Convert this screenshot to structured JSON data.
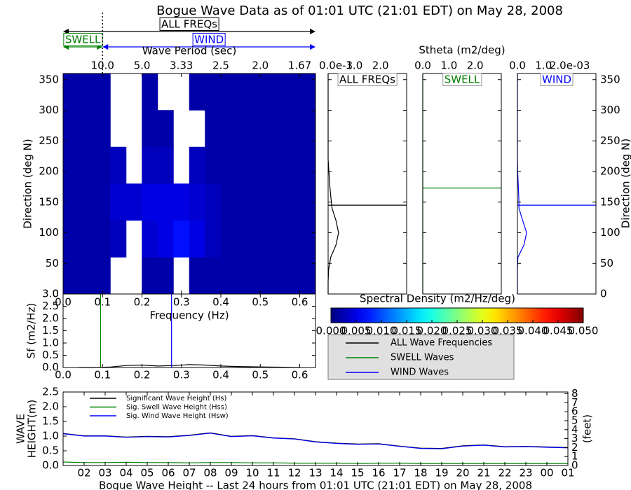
{
  "header": {
    "title": "Bogue Wave Data as of 01:01 UTC (21:01 EDT) on May 28, 2008",
    "bands": [
      {
        "label": "ALL FREQs",
        "color": "#000000",
        "range": [
          0,
          0.64
        ]
      },
      {
        "label": "SWELL",
        "color": "#008000",
        "range": [
          0,
          0.1
        ]
      },
      {
        "label": "WIND",
        "color": "#0000ff",
        "range": [
          0.1,
          0.64
        ]
      }
    ]
  },
  "chart_data": [
    {
      "type": "heatmap",
      "x_label": "Frequency (Hz)",
      "y_label": "Direction (deg N)",
      "top_axis_label": "Wave Period (sec)",
      "top_ticks": [
        {
          "value": 0.1,
          "label": "10.0"
        },
        {
          "value": 0.2,
          "label": "5.0"
        },
        {
          "value": 0.3,
          "label": "3.33"
        },
        {
          "value": 0.4,
          "label": "2.5"
        },
        {
          "value": 0.5,
          "label": "2.0"
        },
        {
          "value": 0.6,
          "label": "1.67"
        }
      ],
      "xlim": [
        0,
        0.64
      ],
      "ylim": [
        0,
        360
      ],
      "xticks": [
        {
          "value": 0,
          "label": "0.0"
        },
        {
          "value": 0.1,
          "label": "0.1"
        },
        {
          "value": 0.2,
          "label": "0.2"
        },
        {
          "value": 0.3,
          "label": "0.3"
        },
        {
          "value": 0.4,
          "label": "0.4"
        },
        {
          "value": 0.5,
          "label": "0.5"
        },
        {
          "value": 0.6,
          "label": "0.6"
        }
      ],
      "yticks": [
        0,
        50,
        100,
        150,
        200,
        250,
        300,
        350
      ],
      "x_bins": [
        0,
        0.04,
        0.08,
        0.12,
        0.16,
        0.2,
        0.24,
        0.28,
        0.32,
        0.36,
        0.4,
        0.44,
        0.48,
        0.52,
        0.56,
        0.6,
        0.64
      ],
      "y_bins": [
        0,
        60,
        120,
        180,
        240,
        300,
        360
      ],
      "z": [
        [
          0.002,
          0.002,
          0.002,
          null,
          null,
          0.002,
          0.002,
          null,
          0.002,
          0.002,
          0.002,
          0.002,
          0.002,
          0.002,
          0.002,
          0.002
        ],
        [
          0.002,
          0.002,
          0.002,
          0.003,
          null,
          0.004,
          0.005,
          0.007,
          0.005,
          0.003,
          0.002,
          0.002,
          0.002,
          0.002,
          0.002,
          0.002
        ],
        [
          0.002,
          0.002,
          0.002,
          0.004,
          0.004,
          0.005,
          0.005,
          0.005,
          0.004,
          0.003,
          0.002,
          0.002,
          0.002,
          0.002,
          0.002,
          0.002
        ],
        [
          0.002,
          0.002,
          0.002,
          0.003,
          null,
          0.003,
          0.003,
          null,
          0.003,
          0.002,
          0.002,
          0.002,
          0.002,
          0.002,
          0.002,
          0.002
        ],
        [
          0.002,
          0.002,
          0.002,
          null,
          null,
          0.002,
          0.002,
          null,
          null,
          0.002,
          0.002,
          0.002,
          0.002,
          0.002,
          0.002,
          0.002
        ],
        [
          0.002,
          0.002,
          0.002,
          null,
          null,
          0.002,
          null,
          null,
          0.002,
          0.002,
          0.002,
          0.002,
          0.002,
          0.002,
          0.002,
          0.002
        ]
      ],
      "colormap": "jet",
      "colorbar_label": "Spectral Density (m2/Hz/deg)",
      "zlim": [
        0,
        0.05
      ],
      "zticks": [
        {
          "value": 0,
          "label": "0.000"
        },
        {
          "value": 0.005,
          "label": "0.005"
        },
        {
          "value": 0.01,
          "label": "0.010"
        },
        {
          "value": 0.015,
          "label": "0.015"
        },
        {
          "value": 0.02,
          "label": "0.020"
        },
        {
          "value": 0.025,
          "label": "0.025"
        },
        {
          "value": 0.03,
          "label": "0.030"
        },
        {
          "value": 0.035,
          "label": "0.035"
        },
        {
          "value": 0.04,
          "label": "0.040"
        },
        {
          "value": 0.045,
          "label": "0.045"
        },
        {
          "value": 0.05,
          "label": "0.050"
        }
      ]
    },
    {
      "type": "direction-profile",
      "title": "Stheta (m2/deg)",
      "y2_label": "Direction (deg N)",
      "xlim": [
        0,
        3
      ],
      "ylim": [
        0,
        360
      ],
      "yticks": [
        0,
        50,
        100,
        150,
        200,
        250,
        300,
        350
      ],
      "directions": [
        0,
        20,
        40,
        60,
        80,
        100,
        120,
        140,
        160,
        180,
        200,
        220,
        240,
        260,
        280,
        300,
        320,
        340,
        360
      ],
      "panels": [
        {
          "name": "ALL FREQs",
          "color": "#000000",
          "mean_direction": 145,
          "values": [
            0,
            0,
            0.02,
            0.1,
            0.3,
            0.4,
            0.3,
            0.15,
            0.1,
            0.06,
            0.03,
            0,
            0,
            0,
            0,
            0,
            0,
            0,
            0
          ],
          "xticks": [
            {
              "value": 0,
              "label": "0.0e-3"
            },
            {
              "value": 1,
              "label": "1.0"
            },
            {
              "value": 2,
              "label": "2.0"
            }
          ]
        },
        {
          "name": "SWELL",
          "color": "#008000",
          "mean_direction": 173,
          "values": [
            0,
            0,
            0,
            0,
            0,
            0,
            0,
            0,
            0,
            0,
            0,
            0,
            0,
            0,
            0,
            0,
            0,
            0,
            0
          ],
          "xticks": [
            {
              "value": 0,
              "label": "0.0"
            },
            {
              "value": 1,
              "label": "1.0"
            },
            {
              "value": 2,
              "label": "2.0"
            }
          ]
        },
        {
          "name": "WIND",
          "color": "#0000ff",
          "mean_direction": 145,
          "values": [
            0,
            0,
            0,
            0.02,
            0.25,
            0.35,
            0.2,
            0.06,
            0.05,
            0.03,
            0.01,
            0,
            0,
            0,
            0,
            0,
            0,
            0,
            0
          ],
          "xticks": [
            {
              "value": 0,
              "label": "0.0"
            },
            {
              "value": 1,
              "label": "1.0"
            },
            {
              "value": 2,
              "label": "2.0e-03"
            }
          ]
        }
      ]
    },
    {
      "type": "line",
      "y_label": "Sf (m2/Hz)",
      "xlim": [
        0,
        0.64
      ],
      "ylim": [
        0,
        3
      ],
      "xticks": [
        {
          "value": 0,
          "label": "0.0"
        },
        {
          "value": 0.1,
          "label": "0.1"
        },
        {
          "value": 0.2,
          "label": "0.2"
        },
        {
          "value": 0.3,
          "label": "0.3"
        },
        {
          "value": 0.4,
          "label": "0.4"
        },
        {
          "value": 0.5,
          "label": "0.5"
        },
        {
          "value": 0.6,
          "label": "0.6"
        }
      ],
      "yticks": [
        {
          "value": 0,
          "label": "0.0"
        },
        {
          "value": 0.5,
          "label": "0.5"
        },
        {
          "value": 1,
          "label": "1.0"
        },
        {
          "value": 1.5,
          "label": "1.5"
        },
        {
          "value": 2,
          "label": "2.0"
        },
        {
          "value": 2.5,
          "label": "2.5"
        },
        {
          "value": 3,
          "label": "3.0"
        }
      ],
      "x": [
        0.04,
        0.08,
        0.12,
        0.16,
        0.2,
        0.24,
        0.28,
        0.32,
        0.36,
        0.4,
        0.44,
        0.48,
        0.52,
        0.56,
        0.6
      ],
      "series": [
        {
          "name": "ALL Wave Frequencies",
          "color": "#000000",
          "values": [
            0,
            0,
            0.02,
            0.08,
            0.1,
            0.06,
            0.08,
            0.12,
            0.1,
            0.06,
            0.04,
            0.03,
            0.02,
            0.01,
            0
          ]
        },
        {
          "name": "SWELL Waves",
          "color": "#008000",
          "peak_frequency": 0.095
        },
        {
          "name": "WIND Waves",
          "color": "#0000ff",
          "peak_frequency": 0.275
        }
      ],
      "legend": "outside"
    },
    {
      "type": "line",
      "y_label": [
        "WAVE",
        "HEIGHT(m)"
      ],
      "y2_label": "(feet)",
      "x_label": "Bogue Wave Height -- Last 24 hours from 01:01 UTC (21:01 EDT) on May 28, 2008",
      "xlim": [
        0,
        24
      ],
      "ylim": [
        0,
        2.5
      ],
      "y2lim": [
        0,
        8.2
      ],
      "xticks": [
        {
          "value": 1,
          "label": "02"
        },
        {
          "value": 2,
          "label": "03"
        },
        {
          "value": 3,
          "label": "04"
        },
        {
          "value": 4,
          "label": "05"
        },
        {
          "value": 5,
          "label": "06"
        },
        {
          "value": 6,
          "label": "07"
        },
        {
          "value": 7,
          "label": "08"
        },
        {
          "value": 8,
          "label": "09"
        },
        {
          "value": 9,
          "label": "10"
        },
        {
          "value": 10,
          "label": "11"
        },
        {
          "value": 11,
          "label": "12"
        },
        {
          "value": 12,
          "label": "13"
        },
        {
          "value": 13,
          "label": "14"
        },
        {
          "value": 14,
          "label": "15"
        },
        {
          "value": 15,
          "label": "16"
        },
        {
          "value": 16,
          "label": "17"
        },
        {
          "value": 17,
          "label": "18"
        },
        {
          "value": 18,
          "label": "19"
        },
        {
          "value": 19,
          "label": "20"
        },
        {
          "value": 20,
          "label": "21"
        },
        {
          "value": 21,
          "label": "22"
        },
        {
          "value": 22,
          "label": "23"
        },
        {
          "value": 23,
          "label": "00"
        },
        {
          "value": 24,
          "label": "01"
        }
      ],
      "yticks": [
        {
          "value": 0,
          "label": "0.0"
        },
        {
          "value": 0.5,
          "label": "0.5"
        },
        {
          "value": 1,
          "label": "1.0"
        },
        {
          "value": 1.5,
          "label": "1.5"
        },
        {
          "value": 2,
          "label": "2.0"
        },
        {
          "value": 2.5,
          "label": "2.5"
        }
      ],
      "y2ticks": [
        0,
        1,
        2,
        3,
        4,
        5,
        6,
        7,
        8
      ],
      "x": [
        0,
        1,
        2,
        3,
        4,
        5,
        6,
        7,
        8,
        9,
        10,
        11,
        12,
        13,
        14,
        15,
        16,
        17,
        18,
        19,
        20,
        21,
        22,
        23,
        24
      ],
      "series": [
        {
          "name": "Significant Wave Height (Hs)",
          "color": "#000000",
          "values": [
            1.09,
            1.01,
            1.01,
            0.97,
            0.99,
            0.98,
            1.03,
            1.11,
            0.99,
            1.02,
            0.94,
            0.91,
            0.81,
            0.76,
            0.73,
            0.74,
            0.66,
            0.59,
            0.58,
            0.67,
            0.7,
            0.64,
            0.65,
            0.63,
            0.61
          ]
        },
        {
          "name": "Sig. Swell Wave Height (Hss)",
          "color": "#008000",
          "values": [
            0.12,
            0.1,
            0.1,
            0.11,
            0.1,
            0.1,
            0.09,
            0.1,
            0.1,
            0.09,
            0.09,
            0.08,
            0.08,
            0.08,
            0.07,
            0.08,
            0.08,
            0.07,
            0.07,
            0.07,
            0.07,
            0.07,
            0.07,
            0.07,
            0.07
          ]
        },
        {
          "name": "Sig. Wind Wave Height (Hsw)",
          "color": "#0000ff",
          "values": [
            1.08,
            1.0,
            1.0,
            0.96,
            0.98,
            0.97,
            1.02,
            1.1,
            0.98,
            1.01,
            0.93,
            0.9,
            0.8,
            0.75,
            0.72,
            0.73,
            0.65,
            0.58,
            0.57,
            0.66,
            0.69,
            0.63,
            0.64,
            0.62,
            0.6
          ]
        }
      ],
      "legend": "upper left"
    }
  ]
}
